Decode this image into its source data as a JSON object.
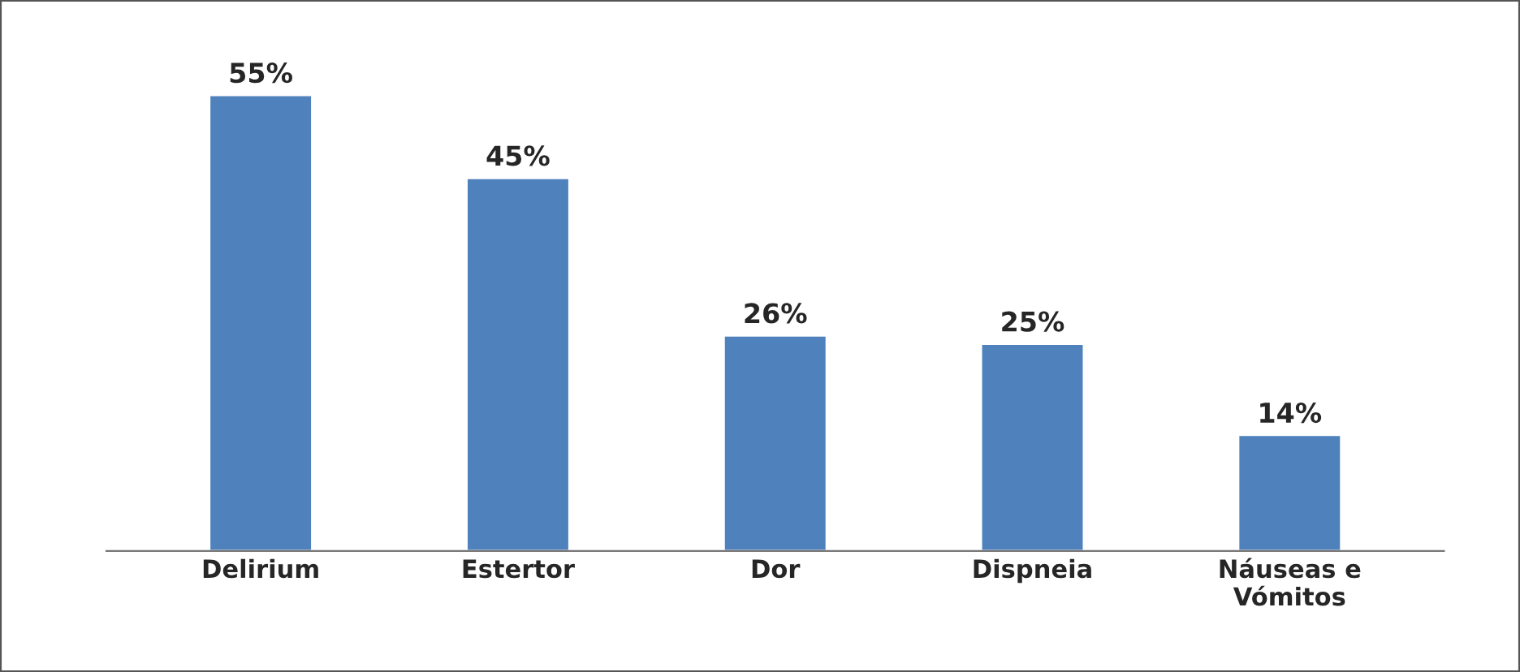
{
  "chart_data": {
    "type": "bar",
    "categories": [
      "Delirium",
      "Estertor",
      "Dor",
      "Dispneia",
      "Náuseas e\nVómitos"
    ],
    "values": [
      55,
      45,
      26,
      25,
      14
    ],
    "color": "#4f81bd",
    "data_labels": true,
    "value_labels": [
      "55%",
      "45%",
      "26%",
      "25%",
      "14%"
    ],
    "grid": false,
    "legend": false
  }
}
